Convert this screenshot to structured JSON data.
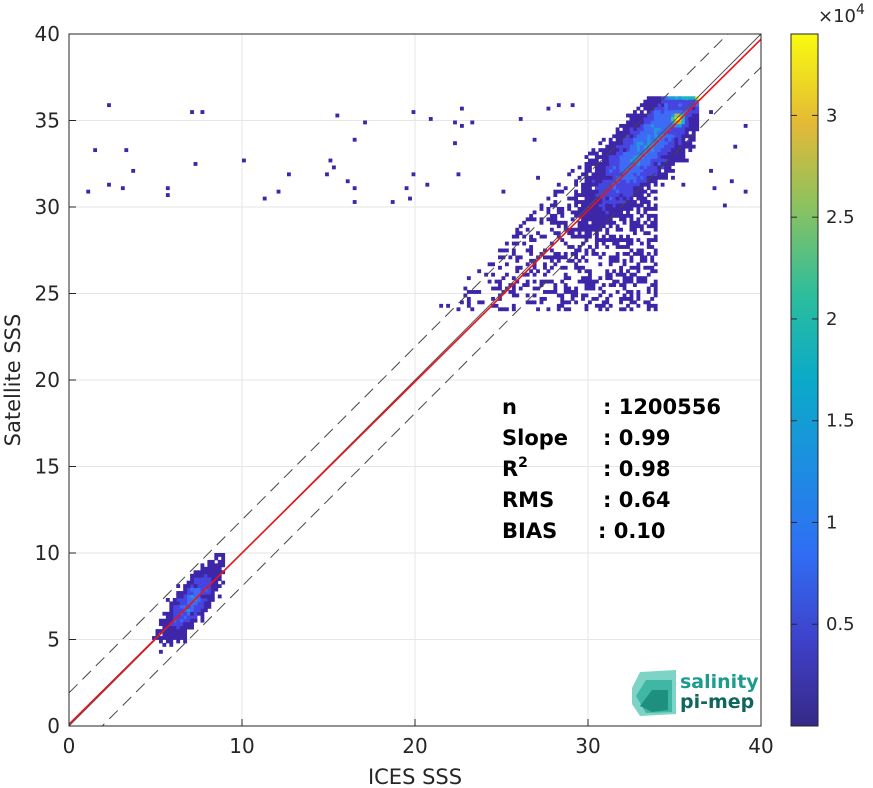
{
  "chart_data": {
    "type": "heatmap",
    "xlabel": "ICES SSS",
    "ylabel": "Satellite SSS",
    "xlim": [
      0,
      40
    ],
    "ylim": [
      0,
      40
    ],
    "xticks": [
      "0",
      "10",
      "20",
      "30",
      "40"
    ],
    "yticks": [
      "0",
      "5",
      "10",
      "15",
      "20",
      "25",
      "30",
      "35",
      "40"
    ],
    "grid": true,
    "colormap": "parula",
    "colorbar": {
      "exponent_label": "×10",
      "exponent": "4",
      "range": [
        0,
        3.4
      ],
      "ticks": [
        "0.5",
        "1",
        "1.5",
        "2",
        "2.5",
        "3"
      ]
    },
    "lines": [
      {
        "name": "identity",
        "slope": 1,
        "intercept": 0,
        "color": "#555555",
        "style": "solid"
      },
      {
        "name": "regression",
        "slope": 0.99,
        "intercept": 0.1,
        "color": "#e8151b",
        "style": "solid"
      },
      {
        "name": "upper bound",
        "slope": 1,
        "intercept": 1.92,
        "color": "#444444",
        "style": "dashed"
      },
      {
        "name": "lower bound",
        "slope": 1,
        "intercept": -1.92,
        "color": "#444444",
        "style": "dashed"
      }
    ],
    "stats": [
      {
        "label": "n",
        "value": ": 1200556"
      },
      {
        "label": "Slope",
        "value": ": 0.99"
      },
      {
        "label": "R",
        "sup": "2",
        "value": ": 0.98"
      },
      {
        "label": "RMS",
        "value": ": 0.64"
      },
      {
        "label": "BIAS",
        "value": ": 0.10"
      }
    ],
    "density_clusters": [
      {
        "x_center": 33.5,
        "y_center": 33.5,
        "x_spread": 2.2,
        "y_spread": 1.8,
        "peak_x": 35.3,
        "peak_y": 35.2
      },
      {
        "x_center": 7.0,
        "y_center": 7.0,
        "x_spread": 1.0,
        "y_spread": 1.1
      }
    ],
    "colors": {
      "low": "#3e26a8",
      "mid": "#2ab1e0",
      "high": "#f9fb0e",
      "regression": "#e8151b"
    }
  },
  "logo": {
    "line1": "salinity",
    "line2": "pi-mep"
  }
}
